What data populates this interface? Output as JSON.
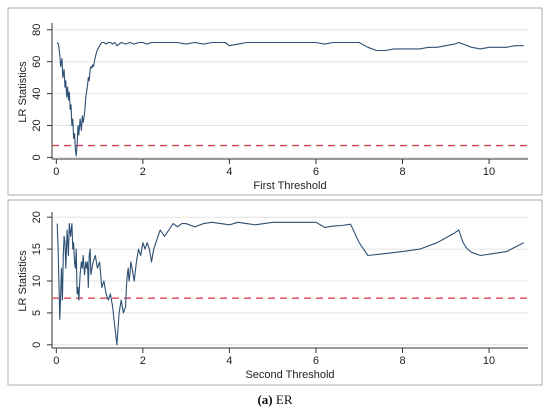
{
  "caption": {
    "label": "(a)",
    "text": "ER"
  },
  "threshold_color": "#d94652",
  "line_color": "#2d4f73",
  "chart_data": [
    {
      "type": "line",
      "xlabel": "First Threshold",
      "ylabel": "LR Statistics",
      "xlim": [
        -0.1,
        10.9
      ],
      "ylim": [
        -1,
        83
      ],
      "xticks": [
        0,
        2,
        4,
        6,
        8,
        10
      ],
      "yticks": [
        0,
        20,
        40,
        60,
        80
      ],
      "grid": "y",
      "threshold_line": 7.4,
      "series": [
        {
          "x": [
            0.02,
            0.05,
            0.08,
            0.1,
            0.13,
            0.15,
            0.18,
            0.2,
            0.22,
            0.24,
            0.26,
            0.28,
            0.3,
            0.32,
            0.34,
            0.36,
            0.38,
            0.4,
            0.42,
            0.44,
            0.46,
            0.48,
            0.5,
            0.52,
            0.55,
            0.58,
            0.6,
            0.62,
            0.64,
            0.66,
            0.68,
            0.7,
            0.72,
            0.74,
            0.76,
            0.78,
            0.8,
            0.82,
            0.84,
            0.86,
            0.88,
            0.9,
            0.93,
            0.96,
            1.0,
            1.05,
            1.1,
            1.15,
            1.2,
            1.25,
            1.3,
            1.35,
            1.4,
            1.5,
            1.6,
            1.7,
            1.8,
            1.9,
            2.0,
            2.1,
            2.2,
            2.3,
            2.4,
            2.6,
            2.8,
            3.0,
            3.2,
            3.4,
            3.6,
            3.8,
            3.9,
            4.0,
            4.2,
            4.4,
            4.6,
            4.8,
            5.0,
            5.2,
            5.4,
            5.6,
            5.8,
            6.0,
            6.2,
            6.4,
            6.6,
            6.8,
            7.0,
            7.2,
            7.4,
            7.6,
            7.8,
            8.0,
            8.2,
            8.4,
            8.6,
            8.8,
            9.0,
            9.2,
            9.3,
            9.4,
            9.6,
            9.8,
            10.0,
            10.2,
            10.4,
            10.6,
            10.8
          ],
          "y": [
            72,
            71,
            64,
            57,
            62,
            50,
            55,
            44,
            48,
            38,
            44,
            36,
            41,
            30,
            33,
            20,
            24,
            12,
            15,
            5,
            1,
            8,
            20,
            14,
            24,
            17,
            26,
            22,
            25,
            30,
            38,
            41,
            45,
            50,
            48,
            55,
            57,
            56,
            58,
            57,
            60,
            63,
            66,
            68,
            70,
            72,
            72,
            71,
            72,
            72,
            71,
            72,
            70,
            72,
            71,
            72,
            71,
            72,
            72,
            71,
            72,
            72,
            72,
            72,
            72,
            71,
            72,
            71,
            72,
            72,
            72,
            70,
            71,
            72,
            72,
            72,
            72,
            72,
            72,
            72,
            72,
            72,
            71,
            72,
            72,
            72,
            72,
            69,
            67,
            67,
            68,
            68,
            68,
            68,
            69,
            69,
            70,
            71,
            72,
            71,
            69,
            68,
            69,
            69,
            69,
            70,
            70
          ],
          "name": ""
        }
      ]
    },
    {
      "type": "line",
      "xlabel": "Second Threshold",
      "ylabel": "LR Statistics",
      "xlim": [
        -0.1,
        10.9
      ],
      "ylim": [
        -0.5,
        20.5
      ],
      "xticks": [
        0,
        2,
        4,
        6,
        8,
        10
      ],
      "yticks": [
        0,
        5,
        10,
        15,
        20
      ],
      "grid": "y",
      "threshold_line": 7.3,
      "series": [
        {
          "x": [
            0.02,
            0.04,
            0.06,
            0.08,
            0.1,
            0.12,
            0.14,
            0.16,
            0.18,
            0.2,
            0.22,
            0.25,
            0.28,
            0.3,
            0.33,
            0.36,
            0.38,
            0.4,
            0.42,
            0.44,
            0.46,
            0.48,
            0.5,
            0.52,
            0.55,
            0.58,
            0.6,
            0.62,
            0.65,
            0.68,
            0.7,
            0.72,
            0.74,
            0.76,
            0.78,
            0.8,
            0.85,
            0.9,
            0.95,
            1.0,
            1.05,
            1.1,
            1.15,
            1.2,
            1.25,
            1.3,
            1.35,
            1.4,
            1.45,
            1.5,
            1.55,
            1.6,
            1.62,
            1.64,
            1.66,
            1.68,
            1.7,
            1.72,
            1.75,
            1.8,
            1.85,
            1.9,
            1.95,
            2.0,
            2.05,
            2.1,
            2.15,
            2.2,
            2.25,
            2.3,
            2.35,
            2.4,
            2.5,
            2.6,
            2.7,
            2.8,
            2.9,
            3.0,
            3.2,
            3.4,
            3.6,
            3.8,
            4.0,
            4.2,
            4.4,
            4.6,
            4.8,
            5.0,
            5.5,
            6.0,
            6.2,
            6.4,
            6.6,
            6.8,
            7.0,
            7.2,
            7.6,
            8.0,
            8.4,
            8.8,
            9.2,
            9.3,
            9.4,
            9.5,
            9.6,
            9.8,
            10.0,
            10.4,
            10.8
          ],
          "y": [
            19,
            15,
            10,
            4,
            8,
            12,
            7,
            14,
            17,
            16,
            12,
            18,
            14,
            19,
            17,
            19,
            15,
            16,
            13,
            12,
            15,
            8,
            9,
            7,
            11,
            13,
            12,
            14,
            11,
            13,
            12,
            13,
            9,
            14,
            15,
            11,
            13,
            14,
            12,
            13,
            9,
            10,
            8,
            7,
            8,
            6,
            3,
            0,
            5,
            7,
            5,
            6,
            9,
            11,
            12,
            10,
            11,
            13,
            12,
            10,
            13,
            15,
            14,
            16,
            15,
            16,
            15,
            13,
            15,
            16,
            17,
            18,
            17,
            18,
            19,
            18.5,
            19,
            19,
            18.5,
            19,
            19.2,
            19,
            18.8,
            19.2,
            19,
            18.8,
            19,
            19.2,
            19.2,
            19.2,
            18.4,
            18.6,
            18.7,
            18.9,
            16,
            14,
            14.3,
            14.6,
            15,
            16,
            17.5,
            18,
            16,
            15,
            14.5,
            14,
            14.2,
            14.6,
            16
          ]
        }
      ]
    }
  ]
}
